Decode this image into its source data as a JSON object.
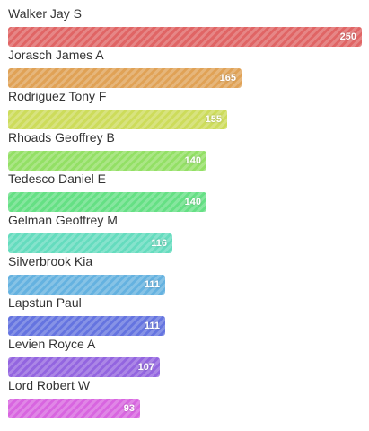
{
  "chart_data": {
    "type": "bar",
    "orientation": "horizontal",
    "categories": [
      "Walker Jay S",
      "Jorasch James A",
      "Rodriguez Tony F",
      "Rhoads Geoffrey B",
      "Tedesco Daniel E",
      "Gelman Geoffrey M",
      "Silverbrook Kia",
      "Lapstun Paul",
      "Levien Royce A",
      "Lord Robert W"
    ],
    "values": [
      250,
      165,
      155,
      140,
      140,
      116,
      111,
      111,
      107,
      93
    ],
    "value_labels": [
      "250",
      "165",
      "155",
      "140",
      "140",
      "116",
      "111",
      "111",
      "107",
      "93"
    ],
    "colors": [
      "#dd5555",
      "#dd9944",
      "#c8d94a",
      "#88dd55",
      "#55dd77",
      "#55d9b8",
      "#55aadd",
      "#5566dd",
      "#8855dd",
      "#d455dd"
    ],
    "xlim": [
      0,
      250
    ],
    "grid": false,
    "legend": false
  }
}
